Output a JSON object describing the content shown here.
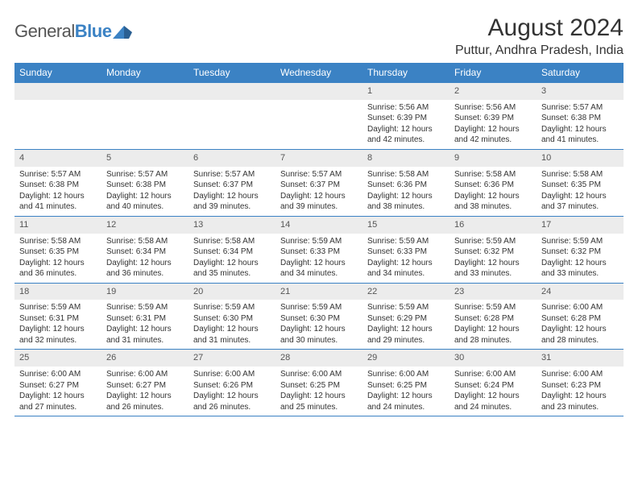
{
  "logo": {
    "word1": "General",
    "word2": "Blue"
  },
  "month_title": "August 2024",
  "location": "Puttur, Andhra Pradesh, India",
  "colors": {
    "header_bg": "#3b82c4",
    "header_text": "#ffffff",
    "daynum_bg": "#ececec",
    "border": "#3b82c4",
    "text": "#333333"
  },
  "weekdays": [
    "Sunday",
    "Monday",
    "Tuesday",
    "Wednesday",
    "Thursday",
    "Friday",
    "Saturday"
  ],
  "weeks": [
    {
      "nums": [
        "",
        "",
        "",
        "",
        "1",
        "2",
        "3"
      ],
      "cells": [
        null,
        null,
        null,
        null,
        {
          "sunrise": "Sunrise: 5:56 AM",
          "sunset": "Sunset: 6:39 PM",
          "day1": "Daylight: 12 hours",
          "day2": "and 42 minutes."
        },
        {
          "sunrise": "Sunrise: 5:56 AM",
          "sunset": "Sunset: 6:39 PM",
          "day1": "Daylight: 12 hours",
          "day2": "and 42 minutes."
        },
        {
          "sunrise": "Sunrise: 5:57 AM",
          "sunset": "Sunset: 6:38 PM",
          "day1": "Daylight: 12 hours",
          "day2": "and 41 minutes."
        }
      ]
    },
    {
      "nums": [
        "4",
        "5",
        "6",
        "7",
        "8",
        "9",
        "10"
      ],
      "cells": [
        {
          "sunrise": "Sunrise: 5:57 AM",
          "sunset": "Sunset: 6:38 PM",
          "day1": "Daylight: 12 hours",
          "day2": "and 41 minutes."
        },
        {
          "sunrise": "Sunrise: 5:57 AM",
          "sunset": "Sunset: 6:38 PM",
          "day1": "Daylight: 12 hours",
          "day2": "and 40 minutes."
        },
        {
          "sunrise": "Sunrise: 5:57 AM",
          "sunset": "Sunset: 6:37 PM",
          "day1": "Daylight: 12 hours",
          "day2": "and 39 minutes."
        },
        {
          "sunrise": "Sunrise: 5:57 AM",
          "sunset": "Sunset: 6:37 PM",
          "day1": "Daylight: 12 hours",
          "day2": "and 39 minutes."
        },
        {
          "sunrise": "Sunrise: 5:58 AM",
          "sunset": "Sunset: 6:36 PM",
          "day1": "Daylight: 12 hours",
          "day2": "and 38 minutes."
        },
        {
          "sunrise": "Sunrise: 5:58 AM",
          "sunset": "Sunset: 6:36 PM",
          "day1": "Daylight: 12 hours",
          "day2": "and 38 minutes."
        },
        {
          "sunrise": "Sunrise: 5:58 AM",
          "sunset": "Sunset: 6:35 PM",
          "day1": "Daylight: 12 hours",
          "day2": "and 37 minutes."
        }
      ]
    },
    {
      "nums": [
        "11",
        "12",
        "13",
        "14",
        "15",
        "16",
        "17"
      ],
      "cells": [
        {
          "sunrise": "Sunrise: 5:58 AM",
          "sunset": "Sunset: 6:35 PM",
          "day1": "Daylight: 12 hours",
          "day2": "and 36 minutes."
        },
        {
          "sunrise": "Sunrise: 5:58 AM",
          "sunset": "Sunset: 6:34 PM",
          "day1": "Daylight: 12 hours",
          "day2": "and 36 minutes."
        },
        {
          "sunrise": "Sunrise: 5:58 AM",
          "sunset": "Sunset: 6:34 PM",
          "day1": "Daylight: 12 hours",
          "day2": "and 35 minutes."
        },
        {
          "sunrise": "Sunrise: 5:59 AM",
          "sunset": "Sunset: 6:33 PM",
          "day1": "Daylight: 12 hours",
          "day2": "and 34 minutes."
        },
        {
          "sunrise": "Sunrise: 5:59 AM",
          "sunset": "Sunset: 6:33 PM",
          "day1": "Daylight: 12 hours",
          "day2": "and 34 minutes."
        },
        {
          "sunrise": "Sunrise: 5:59 AM",
          "sunset": "Sunset: 6:32 PM",
          "day1": "Daylight: 12 hours",
          "day2": "and 33 minutes."
        },
        {
          "sunrise": "Sunrise: 5:59 AM",
          "sunset": "Sunset: 6:32 PM",
          "day1": "Daylight: 12 hours",
          "day2": "and 33 minutes."
        }
      ]
    },
    {
      "nums": [
        "18",
        "19",
        "20",
        "21",
        "22",
        "23",
        "24"
      ],
      "cells": [
        {
          "sunrise": "Sunrise: 5:59 AM",
          "sunset": "Sunset: 6:31 PM",
          "day1": "Daylight: 12 hours",
          "day2": "and 32 minutes."
        },
        {
          "sunrise": "Sunrise: 5:59 AM",
          "sunset": "Sunset: 6:31 PM",
          "day1": "Daylight: 12 hours",
          "day2": "and 31 minutes."
        },
        {
          "sunrise": "Sunrise: 5:59 AM",
          "sunset": "Sunset: 6:30 PM",
          "day1": "Daylight: 12 hours",
          "day2": "and 31 minutes."
        },
        {
          "sunrise": "Sunrise: 5:59 AM",
          "sunset": "Sunset: 6:30 PM",
          "day1": "Daylight: 12 hours",
          "day2": "and 30 minutes."
        },
        {
          "sunrise": "Sunrise: 5:59 AM",
          "sunset": "Sunset: 6:29 PM",
          "day1": "Daylight: 12 hours",
          "day2": "and 29 minutes."
        },
        {
          "sunrise": "Sunrise: 5:59 AM",
          "sunset": "Sunset: 6:28 PM",
          "day1": "Daylight: 12 hours",
          "day2": "and 28 minutes."
        },
        {
          "sunrise": "Sunrise: 6:00 AM",
          "sunset": "Sunset: 6:28 PM",
          "day1": "Daylight: 12 hours",
          "day2": "and 28 minutes."
        }
      ]
    },
    {
      "nums": [
        "25",
        "26",
        "27",
        "28",
        "29",
        "30",
        "31"
      ],
      "cells": [
        {
          "sunrise": "Sunrise: 6:00 AM",
          "sunset": "Sunset: 6:27 PM",
          "day1": "Daylight: 12 hours",
          "day2": "and 27 minutes."
        },
        {
          "sunrise": "Sunrise: 6:00 AM",
          "sunset": "Sunset: 6:27 PM",
          "day1": "Daylight: 12 hours",
          "day2": "and 26 minutes."
        },
        {
          "sunrise": "Sunrise: 6:00 AM",
          "sunset": "Sunset: 6:26 PM",
          "day1": "Daylight: 12 hours",
          "day2": "and 26 minutes."
        },
        {
          "sunrise": "Sunrise: 6:00 AM",
          "sunset": "Sunset: 6:25 PM",
          "day1": "Daylight: 12 hours",
          "day2": "and 25 minutes."
        },
        {
          "sunrise": "Sunrise: 6:00 AM",
          "sunset": "Sunset: 6:25 PM",
          "day1": "Daylight: 12 hours",
          "day2": "and 24 minutes."
        },
        {
          "sunrise": "Sunrise: 6:00 AM",
          "sunset": "Sunset: 6:24 PM",
          "day1": "Daylight: 12 hours",
          "day2": "and 24 minutes."
        },
        {
          "sunrise": "Sunrise: 6:00 AM",
          "sunset": "Sunset: 6:23 PM",
          "day1": "Daylight: 12 hours",
          "day2": "and 23 minutes."
        }
      ]
    }
  ]
}
